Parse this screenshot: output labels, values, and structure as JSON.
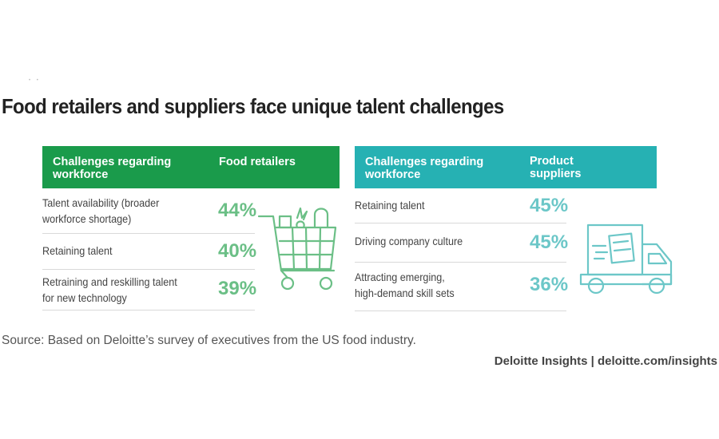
{
  "title": "Food retailers and suppliers face unique talent challenges",
  "left_table": {
    "header_col1": "Challenges regarding workforce",
    "header_col2": "Food retailers",
    "rows": [
      {
        "label_line1": "Talent availability (broader",
        "label_line2": "workforce shortage)",
        "pct": "44%"
      },
      {
        "label_line1": "Retaining talent",
        "label_line2": "",
        "pct": "40%"
      },
      {
        "label_line1": "Retraining and reskilling talent",
        "label_line2": "for new technology",
        "pct": "39%"
      }
    ],
    "icon": "shopping-cart-icon",
    "accent": "#1a9b4b",
    "pct_color": "#6bbf86"
  },
  "right_table": {
    "header_col1": "Challenges regarding workforce",
    "header_col2": "Product suppliers",
    "rows": [
      {
        "label_line1": "Retaining talent",
        "label_line2": "",
        "pct": "45%"
      },
      {
        "label_line1": "Driving company culture",
        "label_line2": "",
        "pct": "45%"
      },
      {
        "label_line1": "Attracting emerging,",
        "label_line2": "high-demand skill sets",
        "pct": "36%"
      }
    ],
    "icon": "delivery-truck-icon",
    "accent": "#26b1b3",
    "pct_color": "#6cc7c8"
  },
  "source": "Source: Based on Deloitte’s survey of executives from the US food industry.",
  "credit": "Deloitte Insights | deloitte.com/insights"
}
